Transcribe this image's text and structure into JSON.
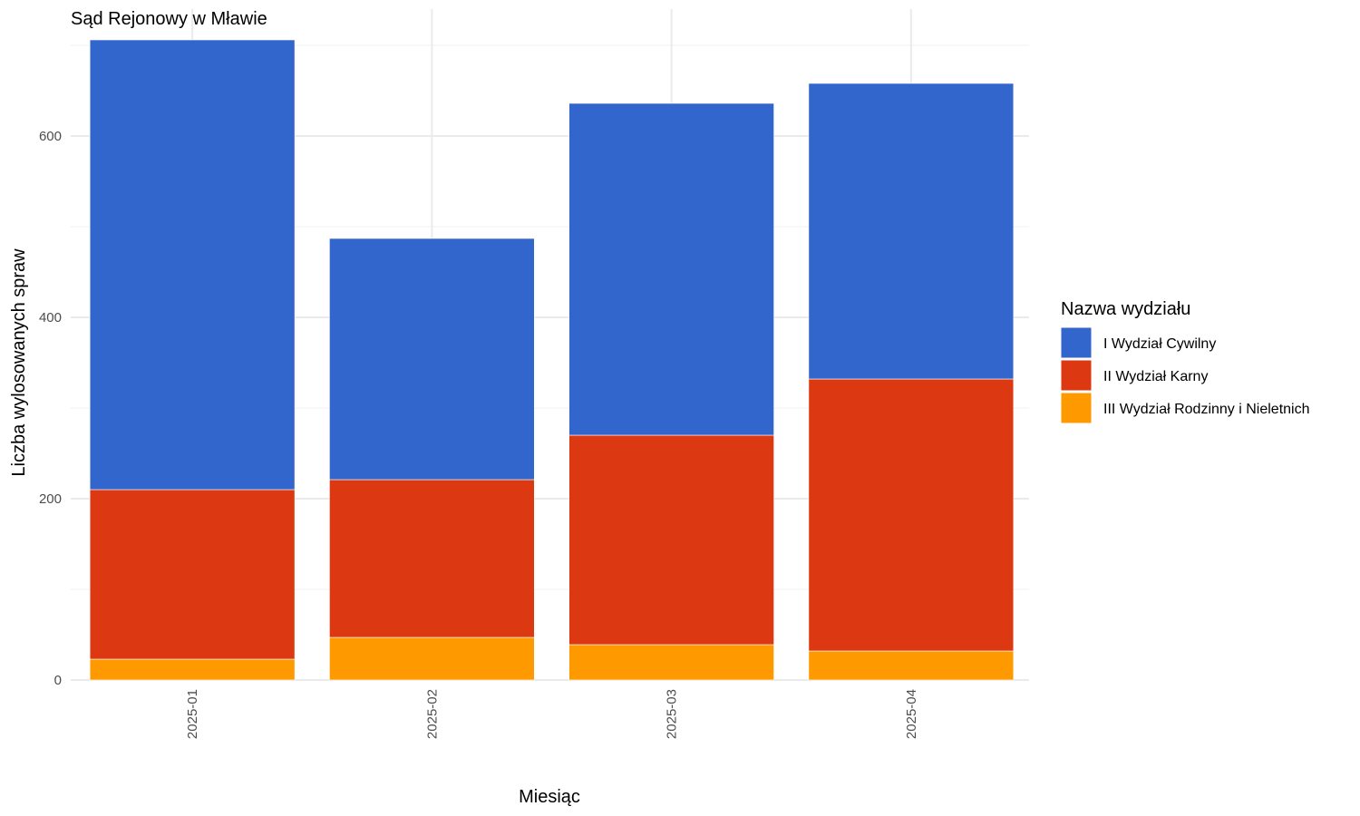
{
  "chart_data": {
    "type": "bar",
    "stacked": true,
    "title": "Sąd Rejonowy w Mławie",
    "xlabel": "Miesiąc",
    "ylabel": "Liczba wylosowanych spraw",
    "categories": [
      "2025-01",
      "2025-02",
      "2025-03",
      "2025-04"
    ],
    "ylim": [
      0,
      740
    ],
    "yticks": [
      0,
      200,
      400,
      600
    ],
    "grid": true,
    "legend": {
      "title": "Nazwa wydziału",
      "position": "right"
    },
    "series": [
      {
        "name": "III Wydział Rodzinny i Nieletnich",
        "color": "#FF9900",
        "values": [
          23,
          47,
          39,
          32
        ]
      },
      {
        "name": "II Wydział Karny",
        "color": "#DC3912",
        "values": [
          187,
          174,
          231,
          300
        ]
      },
      {
        "name": "I Wydział Cywilny",
        "color": "#3366CC",
        "values": [
          496,
          266,
          366,
          326
        ]
      }
    ],
    "legend_order": [
      "I Wydział Cywilny",
      "II Wydział Karny",
      "III Wydział Rodzinny i Nieletnich"
    ]
  }
}
